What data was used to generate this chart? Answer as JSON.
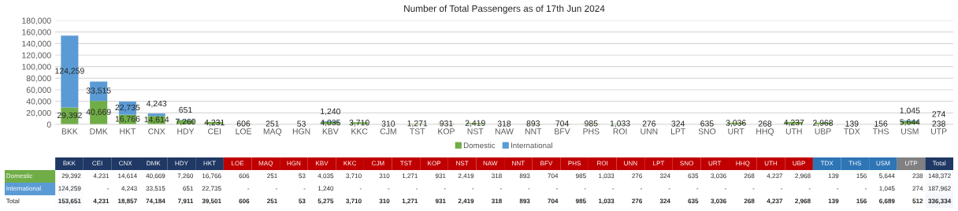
{
  "chart_data": [
    {
      "type": "bar",
      "title": "Number of Total Passengers as of 17th Jun 2024",
      "categories": [
        "BKK",
        "DMK",
        "HKT",
        "CNX",
        "HDY",
        "CEI",
        "LOE",
        "MAQ",
        "HGN",
        "KBV",
        "KKC",
        "CJM",
        "TST",
        "KOP",
        "NST",
        "NAW",
        "NNT",
        "BFV",
        "PHS",
        "ROI",
        "UNN",
        "LPT",
        "SNO",
        "URT",
        "HHQ",
        "UTH",
        "UBP",
        "TDX",
        "THS",
        "USM",
        "UTP"
      ],
      "series": [
        {
          "name": "Domestic",
          "color": "#70ad47",
          "values": [
            29392,
            40669,
            16766,
            14614,
            7260,
            4231,
            606,
            251,
            53,
            4035,
            3710,
            310,
            1271,
            931,
            2419,
            318,
            893,
            704,
            985,
            1033,
            276,
            324,
            635,
            3036,
            268,
            4237,
            2968,
            139,
            156,
            5644,
            238
          ],
          "value_labels": [
            "29,392",
            "40,669",
            "16,766",
            "14,614",
            "7,260",
            "4,231",
            "606",
            "251",
            "53",
            "4,035",
            "3,710",
            "310",
            "1,271",
            "931",
            "2,419",
            "318",
            "893",
            "704",
            "985",
            "1,033",
            "276",
            "324",
            "635",
            "3,036",
            "268",
            "4,237",
            "2,968",
            "139",
            "156",
            "5,644",
            "238"
          ]
        },
        {
          "name": "International",
          "color": "#5b9bd5",
          "values": [
            124259,
            33515,
            22735,
            4243,
            651,
            null,
            null,
            null,
            null,
            1240,
            null,
            null,
            null,
            null,
            null,
            null,
            null,
            null,
            null,
            null,
            null,
            null,
            null,
            null,
            null,
            null,
            null,
            null,
            null,
            1045,
            274
          ],
          "value_labels": [
            "124,259",
            "33,515",
            "22,735",
            "4,243",
            "651",
            null,
            null,
            null,
            null,
            "1,240",
            null,
            null,
            null,
            null,
            null,
            null,
            null,
            null,
            null,
            null,
            null,
            null,
            null,
            null,
            null,
            null,
            null,
            null,
            null,
            "1,045",
            "274"
          ]
        }
      ],
      "stacked": true,
      "grid": "y",
      "legend": "bottom",
      "ylim": [
        0,
        180000
      ],
      "yticks": [
        0,
        {
          "value": 20000,
          "label": "20,000"
        },
        {
          "value": 40000,
          "label": "40,000"
        },
        {
          "value": 60000,
          "label": "60,000"
        },
        {
          "value": 80000,
          "label": "80,000"
        },
        {
          "value": 100000,
          "label": "100,000"
        },
        {
          "value": 120000,
          "label": "120,000"
        },
        {
          "value": 140000,
          "label": "140,000"
        },
        {
          "value": 160000,
          "label": "160,000"
        },
        {
          "value": 180000,
          "label": "180,000"
        }
      ]
    },
    {
      "type": "heatmap",
      "categories": [
        "BKK",
        "CEI",
        "CNX",
        "DMK",
        "HDY",
        "HKT",
        "LOE",
        "MAQ",
        "HGN",
        "KBV",
        "KKC",
        "CJM",
        "TST",
        "KOP",
        "NST",
        "NAW",
        "NNT",
        "BFV",
        "PHS",
        "ROI",
        "UNN",
        "LPT",
        "SNO",
        "URT",
        "HHQ",
        "UTH",
        "UBP",
        "TDX",
        "THS",
        "USM",
        "UTP",
        "Total"
      ],
      "colors": [
        "#1f3864",
        "#1f3864",
        "#1f3864",
        "#1f3864",
        "#1f3864",
        "#1f3864",
        "#c00000",
        "#c00000",
        "#c00000",
        "#c00000",
        "#c00000",
        "#c00000",
        "#c00000",
        "#c00000",
        "#c00000",
        "#c00000",
        "#c00000",
        "#c00000",
        "#c00000",
        "#c00000",
        "#c00000",
        "#c00000",
        "#c00000",
        "#c00000",
        "#c00000",
        "#c00000",
        "#c00000",
        "#2e75b6",
        "#2e75b6",
        "#2e75b6",
        "#808080",
        "#1f3864"
      ],
      "y_categories": [
        "Domestic",
        "International",
        "Total"
      ],
      "cells": [
        [
          29392,
          4231,
          14614,
          40669,
          7260,
          16766,
          606,
          251,
          53,
          4035,
          3710,
          310,
          1271,
          931,
          2419,
          318,
          893,
          704,
          985,
          1033,
          276,
          324,
          635,
          3036,
          268,
          4237,
          2968,
          139,
          156,
          5644,
          238,
          148372
        ],
        [
          124259,
          null,
          4243,
          33515,
          651,
          22735,
          null,
          null,
          null,
          1240,
          null,
          null,
          null,
          null,
          null,
          null,
          null,
          null,
          null,
          null,
          null,
          null,
          null,
          null,
          null,
          null,
          null,
          null,
          null,
          1045,
          274,
          187962
        ],
        [
          153651,
          4231,
          18857,
          74184,
          7911,
          39501,
          606,
          251,
          53,
          5275,
          3710,
          310,
          1271,
          931,
          2419,
          318,
          893,
          704,
          985,
          1033,
          276,
          324,
          635,
          3036,
          268,
          4237,
          2968,
          139,
          156,
          6689,
          512,
          336334
        ]
      ],
      "cell_labels": [
        [
          "29,392",
          "4,231",
          "14,614",
          "40,669",
          "7,260",
          "16,766",
          "606",
          "251",
          "53",
          "4,035",
          "3,710",
          "310",
          "1,271",
          "931",
          "2,419",
          "318",
          "893",
          "704",
          "985",
          "1,033",
          "276",
          "324",
          "635",
          "3,036",
          "268",
          "4,237",
          "2,968",
          "139",
          "156",
          "5,644",
          "238",
          "148,372"
        ],
        [
          "124,259",
          "-",
          "4,243",
          "33,515",
          "651",
          "22,735",
          "-",
          "-",
          "-",
          "1,240",
          "-",
          "-",
          "-",
          "-",
          "-",
          "-",
          "-",
          "-",
          "-",
          "-",
          "-",
          "-",
          "-",
          "-",
          "-",
          "-",
          "-",
          "-",
          "-",
          "1,045",
          "274",
          "187,962"
        ],
        [
          "153,651",
          "4,231",
          "18,857",
          "74,184",
          "7,911",
          "39,501",
          "606",
          "251",
          "53",
          "5,275",
          "3,710",
          "310",
          "1,271",
          "931",
          "2,419",
          "318",
          "893",
          "704",
          "985",
          "1,033",
          "276",
          "324",
          "635",
          "3,036",
          "268",
          "4,237",
          "2,968",
          "139",
          "156",
          "6,689",
          "512",
          "336,334"
        ]
      ]
    }
  ]
}
